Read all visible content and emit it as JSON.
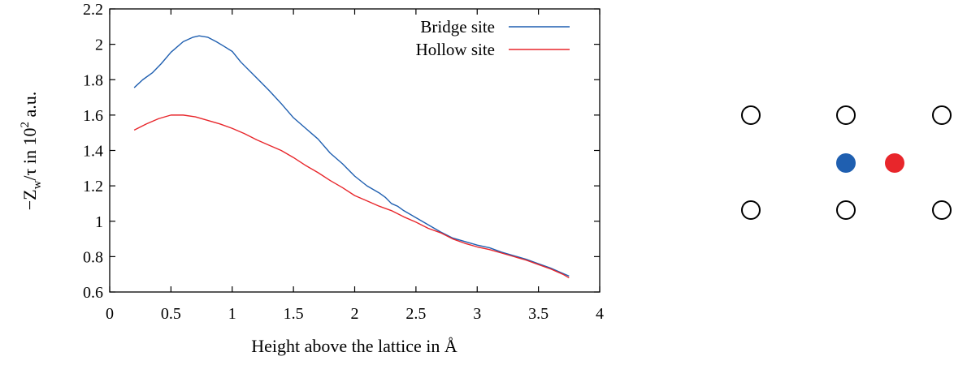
{
  "chart_data": {
    "type": "line",
    "xlabel": "Height above the lattice in Å",
    "ylabel": {
      "prefix": "−Z",
      "subscript": "w",
      "middle": "/τ in 10",
      "superscript": "2",
      "suffix": " a.u."
    },
    "xlim": [
      0,
      4
    ],
    "ylim": [
      0.6,
      2.2
    ],
    "xticks": [
      {
        "value": 0,
        "label": "0"
      },
      {
        "value": 0.5,
        "label": "0.5"
      },
      {
        "value": 1,
        "label": "1"
      },
      {
        "value": 1.5,
        "label": "1.5"
      },
      {
        "value": 2,
        "label": "2"
      },
      {
        "value": 2.5,
        "label": "2.5"
      },
      {
        "value": 3,
        "label": "3"
      },
      {
        "value": 3.5,
        "label": "3.5"
      },
      {
        "value": 4,
        "label": "4"
      }
    ],
    "yticks": [
      {
        "value": 0.6,
        "label": "0.6"
      },
      {
        "value": 0.8,
        "label": "0.8"
      },
      {
        "value": 1.0,
        "label": "1"
      },
      {
        "value": 1.2,
        "label": "1.2"
      },
      {
        "value": 1.4,
        "label": "1.4"
      },
      {
        "value": 1.6,
        "label": "1.6"
      },
      {
        "value": 1.8,
        "label": "1.8"
      },
      {
        "value": 2.0,
        "label": "2"
      },
      {
        "value": 2.2,
        "label": "2.2"
      }
    ],
    "grid": false,
    "legend_position": "top-right",
    "series": [
      {
        "name": "Bridge site",
        "color": "#1f5fb0",
        "points": [
          [
            0.2,
            1.755
          ],
          [
            0.27,
            1.8
          ],
          [
            0.35,
            1.84
          ],
          [
            0.42,
            1.89
          ],
          [
            0.5,
            1.955
          ],
          [
            0.6,
            2.015
          ],
          [
            0.68,
            2.04
          ],
          [
            0.73,
            2.048
          ],
          [
            0.8,
            2.04
          ],
          [
            0.87,
            2.015
          ],
          [
            0.93,
            1.99
          ],
          [
            1.0,
            1.96
          ],
          [
            1.07,
            1.9
          ],
          [
            1.2,
            1.81
          ],
          [
            1.3,
            1.74
          ],
          [
            1.4,
            1.665
          ],
          [
            1.5,
            1.585
          ],
          [
            1.6,
            1.525
          ],
          [
            1.7,
            1.465
          ],
          [
            1.8,
            1.385
          ],
          [
            1.9,
            1.325
          ],
          [
            2.0,
            1.255
          ],
          [
            2.1,
            1.2
          ],
          [
            2.2,
            1.16
          ],
          [
            2.25,
            1.135
          ],
          [
            2.3,
            1.1
          ],
          [
            2.35,
            1.085
          ],
          [
            2.4,
            1.06
          ],
          [
            2.5,
            1.02
          ],
          [
            2.6,
            0.98
          ],
          [
            2.7,
            0.94
          ],
          [
            2.8,
            0.905
          ],
          [
            2.9,
            0.885
          ],
          [
            3.0,
            0.865
          ],
          [
            3.1,
            0.85
          ],
          [
            3.2,
            0.825
          ],
          [
            3.3,
            0.805
          ],
          [
            3.4,
            0.785
          ],
          [
            3.5,
            0.76
          ],
          [
            3.6,
            0.735
          ],
          [
            3.7,
            0.705
          ],
          [
            3.75,
            0.69
          ]
        ]
      },
      {
        "name": "Hollow site",
        "color": "#e8262b",
        "points": [
          [
            0.2,
            1.515
          ],
          [
            0.3,
            1.55
          ],
          [
            0.4,
            1.58
          ],
          [
            0.5,
            1.6
          ],
          [
            0.6,
            1.6
          ],
          [
            0.7,
            1.59
          ],
          [
            0.8,
            1.57
          ],
          [
            0.9,
            1.55
          ],
          [
            1.0,
            1.525
          ],
          [
            1.1,
            1.495
          ],
          [
            1.2,
            1.46
          ],
          [
            1.3,
            1.43
          ],
          [
            1.4,
            1.4
          ],
          [
            1.5,
            1.36
          ],
          [
            1.6,
            1.315
          ],
          [
            1.7,
            1.275
          ],
          [
            1.8,
            1.23
          ],
          [
            1.9,
            1.19
          ],
          [
            2.0,
            1.145
          ],
          [
            2.1,
            1.115
          ],
          [
            2.2,
            1.085
          ],
          [
            2.3,
            1.06
          ],
          [
            2.4,
            1.025
          ],
          [
            2.5,
            0.995
          ],
          [
            2.6,
            0.96
          ],
          [
            2.7,
            0.935
          ],
          [
            2.8,
            0.9
          ],
          [
            2.9,
            0.875
          ],
          [
            3.0,
            0.855
          ],
          [
            3.1,
            0.84
          ],
          [
            3.2,
            0.82
          ],
          [
            3.3,
            0.8
          ],
          [
            3.4,
            0.78
          ],
          [
            3.5,
            0.755
          ],
          [
            3.6,
            0.73
          ],
          [
            3.7,
            0.7
          ],
          [
            3.75,
            0.68
          ]
        ]
      }
    ]
  },
  "lattice_diagram": {
    "atom_fill": "#ffffff",
    "atom_stroke": "#000000",
    "bridge_site_color": "#1f5fb0",
    "hollow_site_color": "#e8262b"
  }
}
